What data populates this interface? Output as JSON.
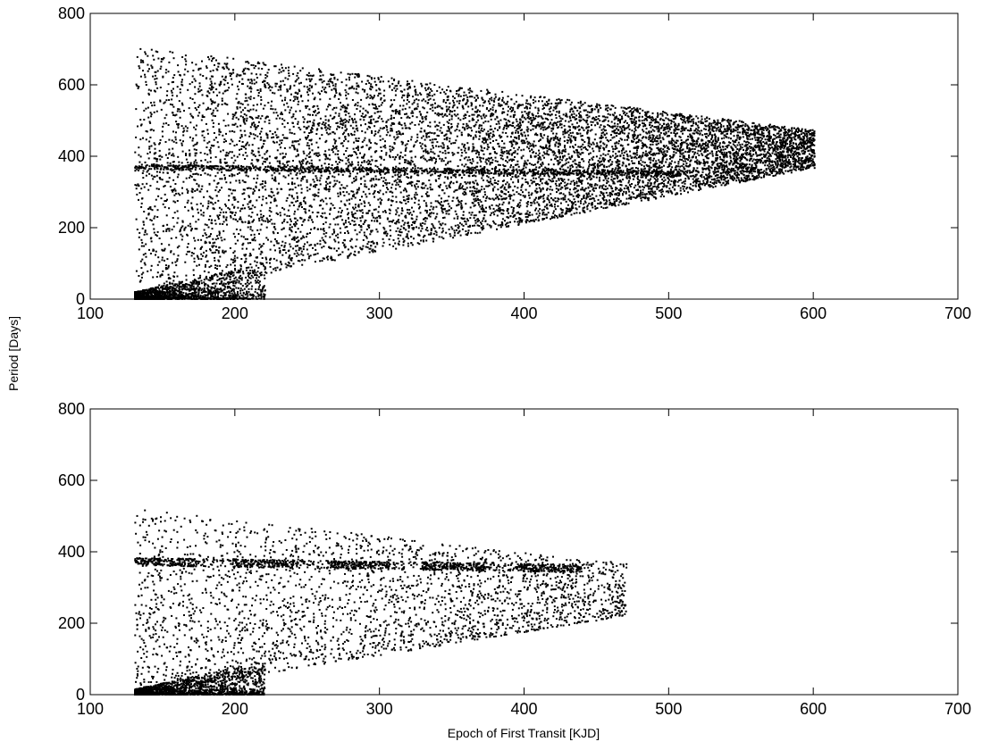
{
  "shared_ylabel": "Period [Days]",
  "chart_data": [
    {
      "type": "scatter",
      "title": "",
      "xlabel": "",
      "ylabel": "",
      "xlim": [
        100,
        700
      ],
      "ylim": [
        0,
        800
      ],
      "xticks": [
        "100",
        "200",
        "300",
        "400",
        "500",
        "600",
        "700"
      ],
      "yticks": [
        "0",
        "200",
        "400",
        "600",
        "800"
      ],
      "grid": false,
      "marker_color": "#000000",
      "description_values": {
        "epoch_min": 131,
        "epoch_max": 603,
        "period_max": 708,
        "dense_period_band": 370
      }
    },
    {
      "type": "scatter",
      "title": "",
      "xlabel": "Epoch of First Transit [KJD]",
      "ylabel": "",
      "xlim": [
        100,
        700
      ],
      "ylim": [
        0,
        800
      ],
      "xticks": [
        "100",
        "200",
        "300",
        "400",
        "500",
        "600",
        "700"
      ],
      "yticks": [
        "0",
        "200",
        "400",
        "600",
        "800"
      ],
      "grid": false,
      "marker_color": "#000000",
      "description_values": {
        "epoch_min": 131,
        "epoch_max": 472,
        "period_max": 520,
        "dense_period_band": 370
      }
    }
  ]
}
